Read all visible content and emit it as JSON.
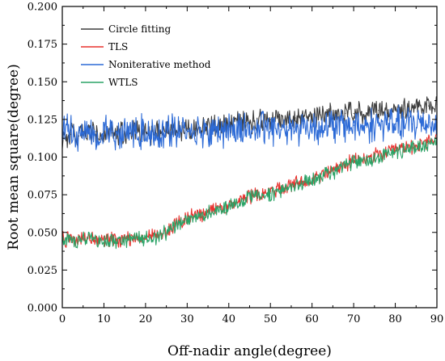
{
  "chart_data": {
    "type": "line",
    "title": "",
    "xlabel": "Off-nadir angle(degree)",
    "ylabel": "Root mean square(degree)",
    "xlim": [
      0,
      90
    ],
    "ylim": [
      0.0,
      0.2
    ],
    "xticks": [
      0,
      10,
      20,
      30,
      40,
      50,
      60,
      70,
      80,
      90
    ],
    "yticks": [
      "0.000",
      "0.025",
      "0.050",
      "0.075",
      "0.100",
      "0.125",
      "0.150",
      "0.175",
      "0.200"
    ],
    "grid": false,
    "legend_position": "top-left",
    "x": [
      0,
      2,
      4,
      6,
      8,
      10,
      12,
      14,
      16,
      18,
      20,
      22,
      24,
      26,
      28,
      30,
      32,
      34,
      36,
      38,
      40,
      42,
      44,
      46,
      48,
      50,
      52,
      54,
      56,
      58,
      60,
      62,
      64,
      66,
      68,
      70,
      72,
      74,
      76,
      78,
      80,
      82,
      84,
      86,
      88,
      90
    ],
    "series": [
      {
        "name": "Circle fitting",
        "color": "#3d3d3d",
        "values": [
          0.113,
          0.115,
          0.114,
          0.116,
          0.115,
          0.114,
          0.116,
          0.115,
          0.115,
          0.116,
          0.117,
          0.116,
          0.117,
          0.118,
          0.118,
          0.119,
          0.119,
          0.12,
          0.121,
          0.121,
          0.122,
          0.123,
          0.123,
          0.124,
          0.124,
          0.125,
          0.125,
          0.126,
          0.126,
          0.127,
          0.127,
          0.128,
          0.128,
          0.128,
          0.129,
          0.129,
          0.13,
          0.13,
          0.131,
          0.131,
          0.132,
          0.132,
          0.133,
          0.134,
          0.134,
          0.135
        ]
      },
      {
        "name": "TLS",
        "color": "#e8322f",
        "values": [
          0.045,
          0.046,
          0.045,
          0.047,
          0.046,
          0.045,
          0.046,
          0.045,
          0.046,
          0.047,
          0.047,
          0.048,
          0.049,
          0.053,
          0.056,
          0.059,
          0.061,
          0.062,
          0.065,
          0.066,
          0.068,
          0.07,
          0.073,
          0.075,
          0.076,
          0.077,
          0.078,
          0.08,
          0.082,
          0.084,
          0.086,
          0.088,
          0.09,
          0.092,
          0.095,
          0.097,
          0.098,
          0.1,
          0.101,
          0.103,
          0.104,
          0.106,
          0.107,
          0.108,
          0.11,
          0.113
        ]
      },
      {
        "name": "Noniterative method",
        "color": "#2c6ad6",
        "values": [
          0.118,
          0.117,
          0.116,
          0.118,
          0.117,
          0.116,
          0.117,
          0.116,
          0.117,
          0.116,
          0.117,
          0.116,
          0.117,
          0.117,
          0.117,
          0.118,
          0.117,
          0.118,
          0.117,
          0.118,
          0.118,
          0.118,
          0.119,
          0.118,
          0.119,
          0.119,
          0.119,
          0.12,
          0.12,
          0.12,
          0.12,
          0.12,
          0.121,
          0.12,
          0.121,
          0.121,
          0.121,
          0.121,
          0.122,
          0.122,
          0.122,
          0.122,
          0.122,
          0.123,
          0.123,
          0.123
        ]
      },
      {
        "name": "WTLS",
        "color": "#2aa366",
        "values": [
          0.044,
          0.045,
          0.044,
          0.046,
          0.045,
          0.044,
          0.045,
          0.044,
          0.045,
          0.046,
          0.046,
          0.047,
          0.048,
          0.052,
          0.055,
          0.058,
          0.06,
          0.061,
          0.064,
          0.065,
          0.067,
          0.069,
          0.072,
          0.074,
          0.075,
          0.076,
          0.077,
          0.079,
          0.081,
          0.083,
          0.085,
          0.087,
          0.089,
          0.091,
          0.094,
          0.096,
          0.097,
          0.099,
          0.1,
          0.102,
          0.103,
          0.105,
          0.106,
          0.107,
          0.109,
          0.112
        ]
      }
    ]
  }
}
